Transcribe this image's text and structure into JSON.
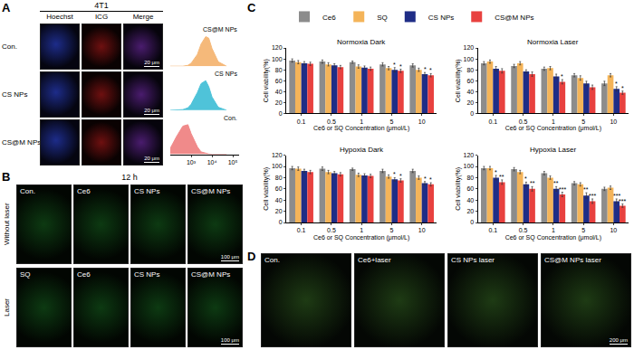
{
  "panel_A": {
    "letter": "A",
    "title": "4T1",
    "columns": [
      "Hoechst",
      "ICG",
      "Merge"
    ],
    "rows": [
      "Con.",
      "CS NPs",
      "CS@M NPs"
    ],
    "scale_bar": "20 μm"
  },
  "panel_B": {
    "letter": "B",
    "title": "12 h",
    "rows": [
      {
        "label": "Without laser",
        "images": [
          "Con.",
          "Ce6",
          "CS NPs",
          "CS@M NPs"
        ]
      },
      {
        "label": "Laser",
        "images": [
          "SQ",
          "Ce6",
          "CS NPs",
          "CS@M NPs"
        ]
      }
    ],
    "scale_bar": "100 μm"
  },
  "panel_C": {
    "letter": "C"
  },
  "panel_D": {
    "letter": "D",
    "images": [
      "Con.",
      "Ce6+laser",
      "CS NPs laser",
      "CS@M NPs laser"
    ],
    "scale_bar": "200 μm"
  },
  "chart_data": [
    {
      "type": "area",
      "log": "x",
      "tick_labels": "x",
      "x": [
        100,
        200,
        400,
        700,
        1000,
        2000,
        3000,
        5000,
        7000,
        10000,
        20000,
        50000
      ],
      "xlim": [
        100,
        200000
      ],
      "xticks": [
        {
          "value": 1000,
          "label": "10³"
        },
        {
          "value": 10000,
          "label": "10⁴"
        },
        {
          "value": 100000,
          "label": "10⁵"
        }
      ],
      "ylim": [
        0,
        140
      ],
      "series": [
        {
          "name": "Con.",
          "color": "#f08a8a",
          "values": [
            20,
            60,
            95,
            100,
            70,
            25,
            8,
            3,
            1,
            0,
            0,
            0
          ]
        },
        {
          "name": "CS NPs",
          "color": "#4fc3d9",
          "values": [
            0,
            0,
            2,
            8,
            20,
            60,
            90,
            100,
            80,
            45,
            10,
            0
          ]
        },
        {
          "name": "CS@M NPs",
          "color": "#f5b97a",
          "values": [
            0,
            0,
            0,
            3,
            10,
            40,
            75,
            100,
            95,
            60,
            15,
            0
          ]
        }
      ]
    },
    {
      "type": "bar",
      "title": "Normoxia Dark",
      "legend": "top",
      "x_label": "Ce6 or SQ Concentration (μmol/L)",
      "y_label": "Cell viability(%)",
      "categories": [
        "0.1",
        "0.5",
        "1",
        "5",
        "10"
      ],
      "ylim": [
        0,
        120
      ],
      "yticks": [
        0,
        20,
        40,
        60,
        80,
        100,
        120
      ],
      "series": [
        {
          "name": "Ce6",
          "color": "#8c8c8c",
          "values": [
            97,
            95,
            94,
            90,
            88
          ],
          "errors": [
            3,
            3,
            2,
            3,
            3
          ],
          "significance": [
            null,
            null,
            null,
            null,
            null
          ]
        },
        {
          "name": "SQ",
          "color": "#f4b459",
          "values": [
            94,
            90,
            86,
            83,
            80
          ],
          "errors": [
            3,
            3,
            3,
            3,
            3
          ],
          "significance": [
            null,
            null,
            null,
            null,
            null
          ]
        },
        {
          "name": "CS NPs",
          "color": "#1f2d86",
          "values": [
            92,
            88,
            84,
            80,
            72
          ],
          "errors": [
            3,
            3,
            3,
            4,
            3
          ],
          "significance": [
            null,
            null,
            null,
            "*",
            "*"
          ]
        },
        {
          "name": "CS@M NPs",
          "color": "#e8413f",
          "values": [
            91,
            85,
            82,
            78,
            70
          ],
          "errors": [
            3,
            3,
            3,
            3,
            3
          ],
          "significance": [
            null,
            null,
            null,
            "*",
            "*"
          ]
        }
      ]
    },
    {
      "type": "bar",
      "title": "Normoxia Laser",
      "x_label": "Ce6 or SQ Concentration (μmol/L)",
      "y_label": "Cell viability(%)",
      "categories": [
        "0.1",
        "0.5",
        "1",
        "5",
        "10"
      ],
      "ylim": [
        0,
        120
      ],
      "yticks": [
        0,
        20,
        40,
        60,
        80,
        100,
        120
      ],
      "series": [
        {
          "name": "Ce6",
          "color": "#8c8c8c",
          "values": [
            92,
            87,
            82,
            70,
            55
          ],
          "errors": [
            3,
            3,
            3,
            3,
            4
          ],
          "significance": [
            null,
            null,
            null,
            null,
            null
          ]
        },
        {
          "name": "SQ",
          "color": "#f4b459",
          "values": [
            95,
            92,
            83,
            65,
            70
          ],
          "errors": [
            3,
            3,
            3,
            4,
            3
          ],
          "significance": [
            null,
            null,
            null,
            null,
            null
          ]
        },
        {
          "name": "CS NPs",
          "color": "#1f2d86",
          "values": [
            82,
            77,
            68,
            55,
            45
          ],
          "errors": [
            4,
            3,
            4,
            4,
            4
          ],
          "significance": [
            null,
            null,
            null,
            null,
            "*"
          ]
        },
        {
          "name": "CS@M NPs",
          "color": "#e8413f",
          "values": [
            78,
            72,
            58,
            48,
            38
          ],
          "errors": [
            4,
            4,
            4,
            4,
            3
          ],
          "significance": [
            null,
            null,
            "*",
            null,
            "*"
          ]
        }
      ]
    },
    {
      "type": "bar",
      "title": "Hypoxia Dark",
      "x_label": "Ce6 or SQ Concentration (μmol/L)",
      "y_label": "Cell viability(%)",
      "categories": [
        "0.1",
        "0.5",
        "1",
        "5",
        "10"
      ],
      "ylim": [
        0,
        120
      ],
      "yticks": [
        0,
        20,
        40,
        60,
        80,
        100,
        120
      ],
      "series": [
        {
          "name": "Ce6",
          "color": "#8c8c8c",
          "values": [
            97,
            96,
            95,
            92,
            92
          ],
          "errors": [
            3,
            3,
            2,
            3,
            3
          ],
          "significance": [
            null,
            null,
            null,
            null,
            null
          ]
        },
        {
          "name": "SQ",
          "color": "#f4b459",
          "values": [
            96,
            90,
            85,
            82,
            80
          ],
          "errors": [
            3,
            3,
            3,
            3,
            3
          ],
          "significance": [
            null,
            null,
            null,
            null,
            null
          ]
        },
        {
          "name": "CS NPs",
          "color": "#1f2d86",
          "values": [
            92,
            88,
            84,
            77,
            70
          ],
          "errors": [
            3,
            3,
            3,
            3,
            3
          ],
          "significance": [
            null,
            null,
            null,
            "*",
            "*"
          ]
        },
        {
          "name": "CS@M NPs",
          "color": "#e8413f",
          "values": [
            90,
            86,
            83,
            75,
            68
          ],
          "errors": [
            3,
            3,
            3,
            3,
            3
          ],
          "significance": [
            null,
            null,
            null,
            "*",
            "*"
          ]
        }
      ]
    },
    {
      "type": "bar",
      "title": "Hypoxia Laser",
      "x_label": "Ce6 or SQ Concentration (μmol/L)",
      "y_label": "Cell viability(%)",
      "categories": [
        "0.1",
        "0.5",
        "1",
        "5",
        "10"
      ],
      "ylim": [
        0,
        120
      ],
      "yticks": [
        0,
        20,
        40,
        60,
        80,
        100,
        120
      ],
      "series": [
        {
          "name": "Ce6",
          "color": "#8c8c8c",
          "values": [
            97,
            95,
            88,
            70,
            60
          ],
          "errors": [
            3,
            3,
            3,
            3,
            3
          ],
          "significance": [
            null,
            null,
            null,
            null,
            null
          ]
        },
        {
          "name": "SQ",
          "color": "#f4b459",
          "values": [
            97,
            90,
            80,
            68,
            62
          ],
          "errors": [
            3,
            3,
            3,
            3,
            3
          ],
          "significance": [
            null,
            null,
            null,
            null,
            null
          ]
        },
        {
          "name": "CS NPs",
          "color": "#1f2d86",
          "values": [
            80,
            68,
            60,
            48,
            38
          ],
          "errors": [
            4,
            4,
            4,
            5,
            4
          ],
          "significance": [
            "*",
            "*",
            "**",
            "**",
            "***"
          ]
        },
        {
          "name": "CS@M NPs",
          "color": "#e8413f",
          "values": [
            72,
            60,
            50,
            38,
            30
          ],
          "errors": [
            4,
            4,
            4,
            4,
            3
          ],
          "significance": [
            "**",
            "**",
            "***",
            "***",
            "***"
          ]
        }
      ]
    }
  ]
}
